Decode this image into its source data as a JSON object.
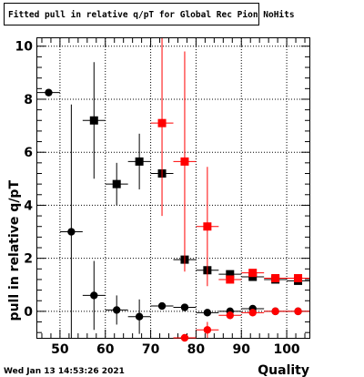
{
  "chart_data": {
    "type": "scatter",
    "title": "Fitted pull in relative q/pT for Global Rec Pion NoHits",
    "xlabel": "Quality",
    "ylabel": "pull in relative q/pT",
    "xlim": [
      45,
      105
    ],
    "ylim": [
      -1,
      10.3
    ],
    "grid": true,
    "x_ticks": [
      "50",
      "60",
      "70",
      "80",
      "90",
      "100"
    ],
    "y_ticks": [
      "0",
      "2",
      "4",
      "6",
      "8",
      "10"
    ],
    "series": [
      {
        "marker": "square",
        "color": "#000000",
        "points": [
          {
            "x": 57.5,
            "y": 7.2,
            "yerr": 2.2
          },
          {
            "x": 62.5,
            "y": 4.8,
            "yerr": 0.8
          },
          {
            "x": 67.5,
            "y": 5.65,
            "yerr": 1.05
          },
          {
            "x": 72.5,
            "y": 5.2,
            "yerr": 0.0
          },
          {
            "x": 77.5,
            "y": 1.95,
            "yerr": 0.15
          },
          {
            "x": 82.5,
            "y": 1.55,
            "yerr": 0.15
          },
          {
            "x": 87.5,
            "y": 1.4,
            "yerr": 0.1
          },
          {
            "x": 92.5,
            "y": 1.3,
            "yerr": 0.05
          },
          {
            "x": 97.5,
            "y": 1.2,
            "yerr": 0.05
          },
          {
            "x": 102.5,
            "y": 1.15,
            "yerr": 0.05
          }
        ]
      },
      {
        "marker": "circle",
        "color": "#000000",
        "points": [
          {
            "x": 47.5,
            "y": 8.25,
            "yerr": 0.0
          },
          {
            "x": 52.5,
            "y": 3.0,
            "yerr": 4.8
          },
          {
            "x": 57.5,
            "y": 0.6,
            "yerr": 1.3
          },
          {
            "x": 62.5,
            "y": 0.05,
            "yerr": 0.55
          },
          {
            "x": 67.5,
            "y": -0.2,
            "yerr": 0.65
          },
          {
            "x": 72.5,
            "y": 0.2,
            "yerr": 0.0
          },
          {
            "x": 77.5,
            "y": 0.15,
            "yerr": 0.0
          },
          {
            "x": 82.5,
            "y": -0.05,
            "yerr": 0.1
          },
          {
            "x": 87.5,
            "y": 0.0,
            "yerr": 0.05
          },
          {
            "x": 92.5,
            "y": 0.1,
            "yerr": 0.05
          },
          {
            "x": 97.5,
            "y": 0.0,
            "yerr": 0.03
          },
          {
            "x": 102.5,
            "y": 0.0,
            "yerr": 0.03
          }
        ]
      },
      {
        "marker": "square",
        "color": "#ff0000",
        "points": [
          {
            "x": 72.5,
            "y": 7.1,
            "yerr": 3.5
          },
          {
            "x": 77.5,
            "y": 5.65,
            "yerr": 4.15
          },
          {
            "x": 82.5,
            "y": 3.2,
            "yerr": 2.25
          },
          {
            "x": 87.5,
            "y": 1.2,
            "yerr": 0.15
          },
          {
            "x": 92.5,
            "y": 1.45,
            "yerr": 0.1
          },
          {
            "x": 97.5,
            "y": 1.25,
            "yerr": 0.05
          },
          {
            "x": 102.5,
            "y": 1.25,
            "yerr": 0.05
          }
        ]
      },
      {
        "marker": "circle",
        "color": "#ff0000",
        "points": [
          {
            "x": 77.5,
            "y": -1.0,
            "yerr": 0.0
          },
          {
            "x": 82.5,
            "y": -0.7,
            "yerr": 0.3
          },
          {
            "x": 87.5,
            "y": -0.15,
            "yerr": 0.05
          },
          {
            "x": 92.5,
            "y": -0.05,
            "yerr": 0.05
          },
          {
            "x": 97.5,
            "y": 0.0,
            "yerr": 0.03
          },
          {
            "x": 102.5,
            "y": 0.0,
            "yerr": 0.03
          }
        ]
      }
    ]
  },
  "footer": {
    "date": "Wed Jan 13 14:53:26 2021"
  }
}
